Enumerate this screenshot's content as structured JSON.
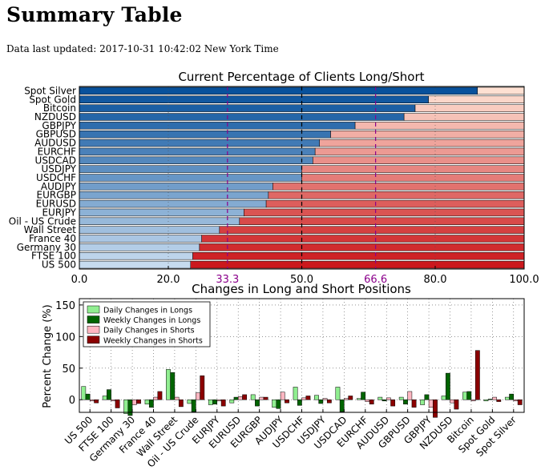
{
  "page": {
    "title": "Summary Table",
    "last_updated": "Data last updated: 2017-10-31 10:42:02 New York Time"
  },
  "chart_data": [
    {
      "type": "bar",
      "orientation": "horizontal",
      "stacked": true,
      "title": "Current Percentage of Clients Long/Short",
      "xlim": [
        0,
        100
      ],
      "xticks": [
        0.0,
        20.0,
        50.0,
        80.0,
        100.0
      ],
      "xtick_labels": [
        "0.0",
        "20.0",
        "50.0",
        "80.0",
        "100.0"
      ],
      "reference_lines": [
        {
          "value": 33.3,
          "label": "33.3",
          "color": "#8b008b",
          "style": "dashed"
        },
        {
          "value": 50.0,
          "label": "",
          "color": "#000000",
          "style": "dashed"
        },
        {
          "value": 66.6,
          "label": "66.6",
          "color": "#8b008b",
          "style": "dashed"
        }
      ],
      "categories": [
        "Spot Silver",
        "Spot Gold",
        "Bitcoin",
        "NZDUSD",
        "GBPJPY",
        "GBPUSD",
        "AUDUSD",
        "EURCHF",
        "USDCAD",
        "USDJPY",
        "USDCHF",
        "AUDJPY",
        "EURGBP",
        "EURUSD",
        "EURJPY",
        "Oil - US Crude",
        "Wall Street",
        "France 40",
        "Germany 30",
        "FTSE 100",
        "US 500"
      ],
      "series": [
        {
          "name": "Long",
          "values": [
            89.5,
            78.5,
            75.5,
            73.0,
            62.0,
            56.5,
            54.0,
            53.0,
            52.5,
            50.0,
            50.0,
            43.5,
            42.5,
            42.0,
            37.0,
            36.0,
            31.5,
            27.5,
            27.0,
            25.5,
            25.0
          ]
        },
        {
          "name": "Short",
          "values": [
            10.5,
            21.5,
            24.5,
            27.0,
            38.0,
            43.5,
            46.0,
            47.0,
            47.5,
            50.0,
            50.0,
            56.5,
            57.5,
            58.0,
            63.0,
            64.0,
            68.5,
            72.5,
            73.0,
            74.5,
            75.0
          ]
        }
      ],
      "colors": {
        "long_dark": "#08519c",
        "long_light": "#c6dbef",
        "short_dark": "#cb181d",
        "short_light": "#fee0d2"
      },
      "grid": true
    },
    {
      "type": "bar",
      "title": "Changes in Long and Short Positions",
      "ylabel": "Percent Change (%)",
      "ylim": [
        -20,
        160
      ],
      "yticks": [
        0,
        50,
        100,
        150
      ],
      "legend_position": "top-left",
      "grid": true,
      "categories": [
        "US 500",
        "FTSE 100",
        "Germany 30",
        "France 40",
        "Wall Street",
        "Oil - US Crude",
        "EURJPY",
        "EURUSD",
        "EURGBP",
        "AUDJPY",
        "USDCHF",
        "USDJPY",
        "USDCAD",
        "EURCHF",
        "AUDUSD",
        "GBPUSD",
        "GBPJPY",
        "NZDUSD",
        "Bitcoin",
        "Spot Gold",
        "Spot Silver"
      ],
      "series": [
        {
          "name": "Daily Changes in Longs",
          "color": "#90ee90",
          "values": [
            21,
            6,
            -22,
            -7,
            48,
            -6,
            -8,
            -5,
            8,
            -12,
            20,
            7,
            20,
            2,
            4,
            4,
            -8,
            6,
            12,
            -2,
            4
          ]
        },
        {
          "name": "Weekly Changes in Longs",
          "color": "#006400",
          "values": [
            9,
            16,
            -25,
            -12,
            43,
            -19,
            -7,
            4,
            -10,
            -14,
            -9,
            -6,
            -19,
            12,
            -2,
            -7,
            8,
            42,
            13,
            1,
            9
          ]
        },
        {
          "name": "Daily Changes in Shorts",
          "color": "#ffb6c1",
          "values": [
            -2,
            -2,
            -8,
            4,
            4,
            11,
            -2,
            5,
            4,
            12,
            3,
            2,
            2,
            -3,
            3,
            13,
            -12,
            -5,
            -2,
            4,
            -2
          ]
        },
        {
          "name": "Weekly Changes in Shorts",
          "color": "#8b0000",
          "values": [
            -5,
            -13,
            -6,
            13,
            -11,
            38,
            -10,
            8,
            4,
            -5,
            6,
            -5,
            6,
            -7,
            -10,
            -12,
            -28,
            -15,
            78,
            -3,
            -8
          ]
        }
      ]
    }
  ]
}
